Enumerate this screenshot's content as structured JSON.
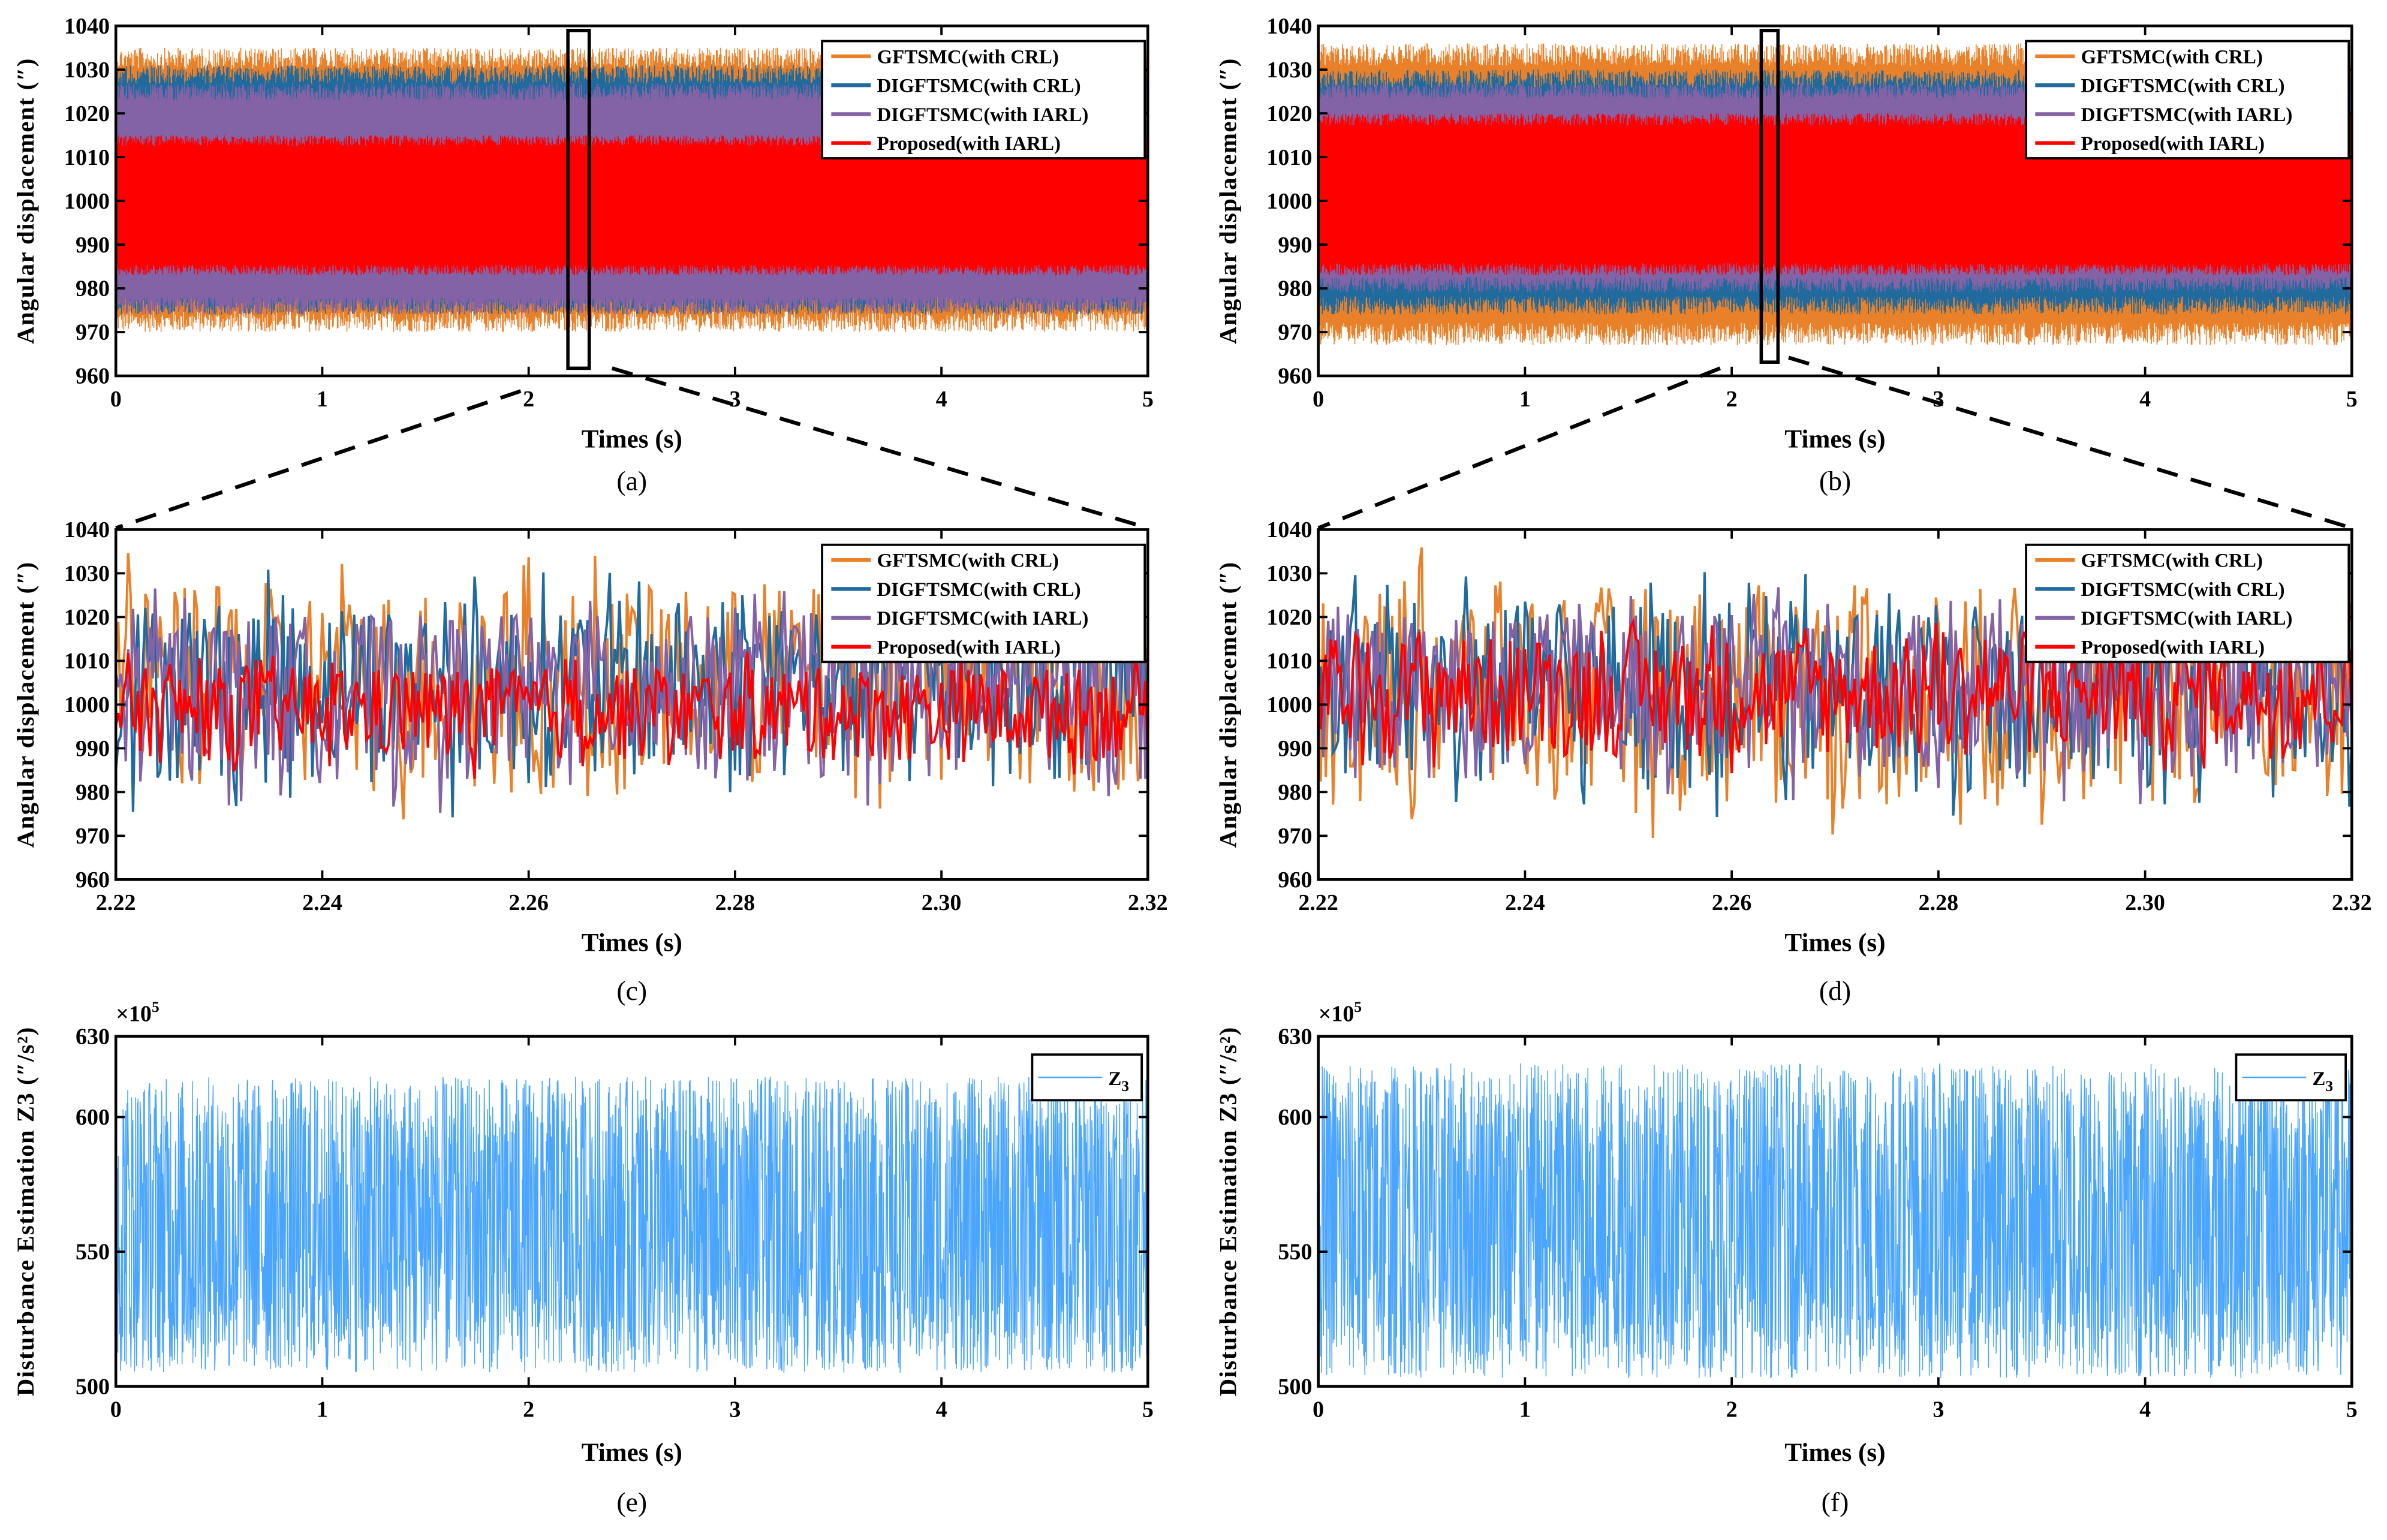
{
  "chart_data": [
    {
      "id": "a",
      "type": "line",
      "caption": "(a)",
      "xlabel": "Times (s)",
      "ylabel": "Angular displacement (″)",
      "xlim": [
        0,
        5
      ],
      "ylim": [
        960,
        1040
      ],
      "xticks": [
        "0",
        "1",
        "2",
        "3",
        "4",
        "5"
      ],
      "yticks": [
        "960",
        "970",
        "980",
        "990",
        "1000",
        "1010",
        "1020",
        "1030",
        "1040"
      ],
      "legend": "top-right",
      "zoom_window": [
        2.22,
        2.32
      ],
      "series": [
        {
          "name": "GFTSMC(with CRL)",
          "color": "#E8812A",
          "range": [
            970,
            1035
          ]
        },
        {
          "name": "DIGFTSMC(with CRL)",
          "color": "#206A9E",
          "range": [
            974,
            1031
          ]
        },
        {
          "name": "DIGFTSMC(with IARL)",
          "color": "#8462A6",
          "range": [
            974,
            1027
          ]
        },
        {
          "name": "Proposed(with IARL)",
          "color": "#FF0000",
          "range": [
            983,
            1015
          ]
        }
      ]
    },
    {
      "id": "b",
      "type": "line",
      "caption": "(b)",
      "xlabel": "Times (s)",
      "ylabel": "Angular displacement (″)",
      "xlim": [
        0,
        5
      ],
      "ylim": [
        960,
        1040
      ],
      "xticks": [
        "0",
        "1",
        "2",
        "3",
        "4",
        "5"
      ],
      "yticks": [
        "960",
        "970",
        "980",
        "990",
        "1000",
        "1010",
        "1020",
        "1030",
        "1040"
      ],
      "legend": "top-right",
      "zoom_window": [
        2.22,
        2.32
      ],
      "series": [
        {
          "name": "GFTSMC(with CRL)",
          "color": "#E8812A",
          "range": [
            967,
            1036
          ]
        },
        {
          "name": "DIGFTSMC(with CRL)",
          "color": "#206A9E",
          "range": [
            974,
            1030
          ]
        },
        {
          "name": "DIGFTSMC(with IARL)",
          "color": "#8462A6",
          "range": [
            979,
            1027
          ]
        },
        {
          "name": "Proposed(with IARL)",
          "color": "#FF0000",
          "range": [
            983,
            1020
          ]
        }
      ]
    },
    {
      "id": "c",
      "type": "line",
      "caption": "(c)",
      "xlabel": "Times (s)",
      "ylabel": "Angular displacement (″)",
      "xlim": [
        2.22,
        2.32
      ],
      "ylim": [
        960,
        1040
      ],
      "xticks": [
        "2.22",
        "2.24",
        "2.26",
        "2.28",
        "2.30",
        "2.32"
      ],
      "yticks": [
        "960",
        "970",
        "980",
        "990",
        "1000",
        "1010",
        "1020",
        "1030",
        "1040"
      ],
      "legend": "top-right",
      "series": [
        {
          "name": "GFTSMC(with CRL)",
          "color": "#E8812A",
          "range": [
            970,
            1035
          ]
        },
        {
          "name": "DIGFTSMC(with CRL)",
          "color": "#206A9E",
          "range": [
            974,
            1031
          ]
        },
        {
          "name": "DIGFTSMC(with IARL)",
          "color": "#8462A6",
          "range": [
            975,
            1027
          ]
        },
        {
          "name": "Proposed(with IARL)",
          "color": "#FF0000",
          "range": [
            983,
            1012
          ]
        }
      ]
    },
    {
      "id": "d",
      "type": "line",
      "caption": "(d)",
      "xlabel": "Times (s)",
      "ylabel": "Angular displacement (″)",
      "xlim": [
        2.22,
        2.32
      ],
      "ylim": [
        960,
        1040
      ],
      "xticks": [
        "2.22",
        "2.24",
        "2.26",
        "2.28",
        "2.30",
        "2.32"
      ],
      "yticks": [
        "960",
        "970",
        "980",
        "990",
        "1000",
        "1010",
        "1020",
        "1030",
        "1040"
      ],
      "legend": "top-right",
      "series": [
        {
          "name": "GFTSMC(with CRL)",
          "color": "#E8812A",
          "range": [
            966,
            1036
          ]
        },
        {
          "name": "DIGFTSMC(with CRL)",
          "color": "#206A9E",
          "range": [
            972,
            1031
          ]
        },
        {
          "name": "DIGFTSMC(with IARL)",
          "color": "#8462A6",
          "range": [
            976,
            1027
          ]
        },
        {
          "name": "Proposed(with IARL)",
          "color": "#FF0000",
          "range": [
            983,
            1020
          ]
        }
      ]
    },
    {
      "id": "e",
      "type": "line",
      "caption": "(e)",
      "xlabel": "Times (s)",
      "ylabel": "Disturbance Estimation Z3 (″/s²)",
      "yexp": "×10",
      "yexp_power": "5",
      "xlim": [
        0,
        5
      ],
      "ylim": [
        500,
        630
      ],
      "xticks": [
        "0",
        "1",
        "2",
        "3",
        "4",
        "5"
      ],
      "yticks": [
        "500",
        "550",
        "600",
        "630"
      ],
      "ytick_values": [
        500,
        550,
        600,
        630
      ],
      "legend": "top-right",
      "series": [
        {
          "name": "Z",
          "sub": "3",
          "color": "#4AA5FF",
          "range": [
            505,
            615
          ]
        }
      ]
    },
    {
      "id": "f",
      "type": "line",
      "caption": "(f)",
      "xlabel": "Times (s)",
      "ylabel": "Disturbance Estimation Z3 (″/s²)",
      "yexp": "×10",
      "yexp_power": "5",
      "xlim": [
        0,
        5
      ],
      "ylim": [
        500,
        630
      ],
      "xticks": [
        "0",
        "1",
        "2",
        "3",
        "4",
        "5"
      ],
      "yticks": [
        "500",
        "550",
        "600",
        "630"
      ],
      "ytick_values": [
        500,
        550,
        600,
        630
      ],
      "legend": "top-right",
      "series": [
        {
          "name": "Z",
          "sub": "3",
          "color": "#4AA5FF",
          "range": [
            503,
            620
          ]
        }
      ]
    }
  ]
}
